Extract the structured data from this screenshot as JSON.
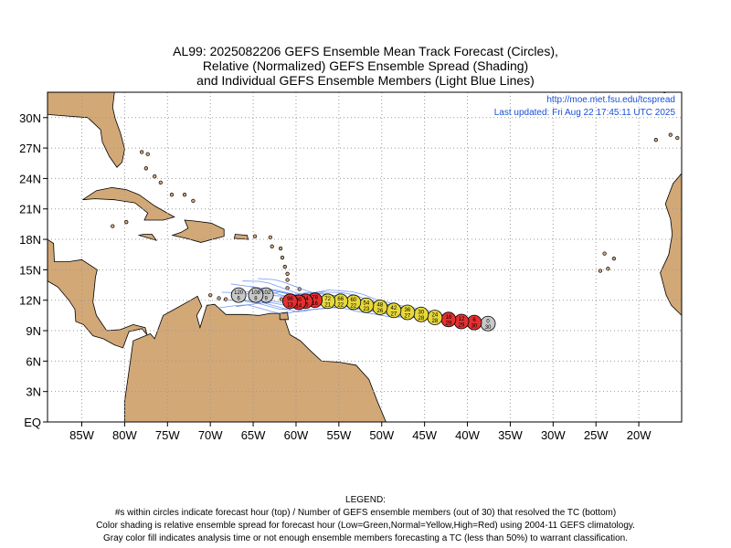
{
  "title": {
    "line1": "AL99: 2025082206 GEFS Ensemble Mean Track Forecast (Circles),",
    "line2": "Relative (Normalized) GEFS Ensemble Spread (Shading)",
    "line3": "and Individual GEFS Ensemble Members (Light Blue Lines)"
  },
  "credit": {
    "url": "http://moe.met.fsu.edu/tcspread",
    "updated": "Last updated: Fri Aug 22 17:45:11 UTC 2025"
  },
  "axes": {
    "lat_labels": [
      "30N",
      "27N",
      "24N",
      "21N",
      "18N",
      "15N",
      "12N",
      "9N",
      "6N",
      "3N",
      "EQ"
    ],
    "lat_values": [
      30,
      27,
      24,
      21,
      18,
      15,
      12,
      9,
      6,
      3,
      0
    ],
    "lon_labels": [
      "85W",
      "80W",
      "75W",
      "70W",
      "65W",
      "60W",
      "55W",
      "50W",
      "45W",
      "40W",
      "35W",
      "30W",
      "25W",
      "20W"
    ],
    "lon_values": [
      -85,
      -80,
      -75,
      -70,
      -65,
      -60,
      -55,
      -50,
      -45,
      -40,
      -35,
      -30,
      -25,
      -20
    ],
    "lon_range": [
      -89,
      -15
    ],
    "lat_range": [
      0,
      32.5
    ],
    "grid": "dotted"
  },
  "colors": {
    "land": "#d2a877",
    "ocean": "#ffffff",
    "member_tracks": "#5b86f0",
    "spread_low": "#3cb043",
    "spread_normal": "#e6d83a",
    "spread_high": "#e53030",
    "analysis_gray": "#c8c8c8"
  },
  "forecast_points": [
    {
      "hour": "0",
      "members": "30",
      "lon": -37.6,
      "lat": 9.7,
      "class": "gray"
    },
    {
      "hour": "6",
      "members": "30",
      "lon": -39.2,
      "lat": 9.8,
      "class": "high"
    },
    {
      "hour": "12",
      "members": "29",
      "lon": -40.7,
      "lat": 9.9,
      "class": "high"
    },
    {
      "hour": "18",
      "members": "29",
      "lon": -42.2,
      "lat": 10.1,
      "class": "high"
    },
    {
      "hour": "24",
      "members": "28",
      "lon": -43.8,
      "lat": 10.3,
      "class": "normal"
    },
    {
      "hour": "30",
      "members": "28",
      "lon": -45.4,
      "lat": 10.6,
      "class": "normal"
    },
    {
      "hour": "36",
      "members": "27",
      "lon": -47.0,
      "lat": 10.8,
      "class": "normal"
    },
    {
      "hour": "42",
      "members": "27",
      "lon": -48.6,
      "lat": 11.0,
      "class": "normal"
    },
    {
      "hour": "48",
      "members": "26",
      "lon": -50.2,
      "lat": 11.3,
      "class": "normal"
    },
    {
      "hour": "54",
      "members": "23",
      "lon": -51.8,
      "lat": 11.5,
      "class": "normal"
    },
    {
      "hour": "60",
      "members": "22",
      "lon": -53.3,
      "lat": 11.8,
      "class": "normal"
    },
    {
      "hour": "66",
      "members": "22",
      "lon": -54.8,
      "lat": 11.9,
      "class": "normal"
    },
    {
      "hour": "72",
      "members": "21",
      "lon": -56.3,
      "lat": 11.9,
      "class": "normal"
    },
    {
      "hour": "78",
      "members": "16",
      "lon": -57.8,
      "lat": 12.0,
      "class": "high"
    },
    {
      "hour": "84",
      "members": "15",
      "lon": -58.9,
      "lat": 11.9,
      "class": "high"
    },
    {
      "hour": "90",
      "members": "14",
      "lon": -59.7,
      "lat": 11.8,
      "class": "high"
    },
    {
      "hour": "96",
      "members": "13",
      "lon": -60.7,
      "lat": 11.9,
      "class": "high"
    },
    {
      "hour": "102",
      "members": "9",
      "lon": -63.5,
      "lat": 12.5,
      "class": "gray"
    },
    {
      "hour": "108",
      "members": "8",
      "lon": -64.7,
      "lat": 12.5,
      "class": "gray"
    },
    {
      "hour": "120",
      "members": "6",
      "lon": -66.7,
      "lat": 12.5,
      "class": "gray"
    }
  ],
  "legend": {
    "heading": "LEGEND:",
    "line1": "#s within circles indicate forecast hour (top) / Number of GEFS ensemble members (out of 30) that resolved the TC (bottom)",
    "line2": "Color shading is relative ensemble spread for forecast hour (Low=Green,Normal=Yellow,High=Red) using 2004-11 GEFS climatology.",
    "line3": "Gray color fill indicates analysis time or not enough ensemble members forecasting a TC (less than 50%) to warrant classification."
  }
}
